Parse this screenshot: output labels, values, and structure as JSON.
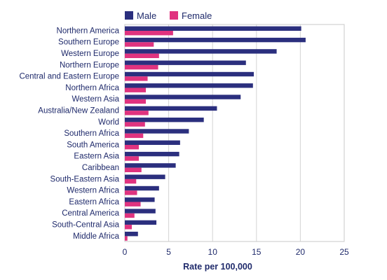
{
  "chart_data": {
    "type": "bar",
    "orientation": "horizontal",
    "categories": [
      "Northern America",
      "Southern Europe",
      "Western Europe",
      "Northern Europe",
      "Central and Eastern Europe",
      "Northern Africa",
      "Western Asia",
      "Australia/New Zealand",
      "World",
      "Southern Africa",
      "South America",
      "Eastern Asia",
      "Caribbean",
      "South-Eastern Asia",
      "Western Africa",
      "Eastern Africa",
      "Central America",
      "South-Central Asia",
      "Middle Africa"
    ],
    "series": [
      {
        "name": "Male",
        "color": "#2b2f7e",
        "values": [
          20.1,
          20.6,
          17.3,
          13.8,
          14.7,
          14.6,
          13.2,
          10.5,
          9.0,
          7.3,
          6.3,
          6.2,
          5.8,
          4.6,
          3.9,
          3.4,
          3.5,
          3.6,
          1.5
        ]
      },
      {
        "name": "Female",
        "color": "#e0337f",
        "values": [
          5.5,
          3.3,
          3.9,
          3.8,
          2.6,
          2.4,
          2.4,
          2.7,
          2.3,
          2.1,
          1.6,
          1.6,
          1.9,
          1.3,
          1.4,
          1.8,
          1.1,
          0.8,
          0.3
        ]
      }
    ],
    "xlabel": "Rate per 100,000",
    "ylabel": "",
    "title": "",
    "xlim": [
      0,
      25
    ],
    "xticks": [
      0,
      5,
      10,
      15,
      20,
      25
    ],
    "grid": "vertical",
    "legend_position": "top-left"
  }
}
